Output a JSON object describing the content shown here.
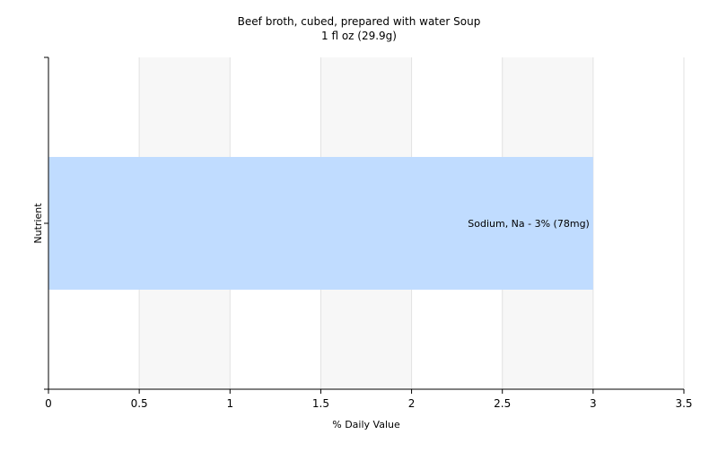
{
  "chart_data": {
    "type": "bar",
    "orientation": "horizontal",
    "title": "Beef broth, cubed, prepared with water Soup",
    "subtitle": "1 fl oz (29.9g)",
    "xlabel": "% Daily Value",
    "ylabel": "Nutrient",
    "categories": [
      "Sodium, Na"
    ],
    "values": [
      3
    ],
    "data_labels": [
      "Sodium, Na - 3% (78mg)"
    ],
    "xlim": [
      0,
      3.5
    ],
    "xticks": [
      "0",
      "0.5",
      "1",
      "1.5",
      "2",
      "2.5",
      "3",
      "3.5"
    ],
    "grid": true,
    "legend": "none",
    "colors": {
      "bar": "#c0dcff",
      "plot_band_light": "#f7f7f7",
      "plot_band_white": "#ffffff",
      "grid": "#e2e2e2",
      "axis": "#000000"
    }
  }
}
